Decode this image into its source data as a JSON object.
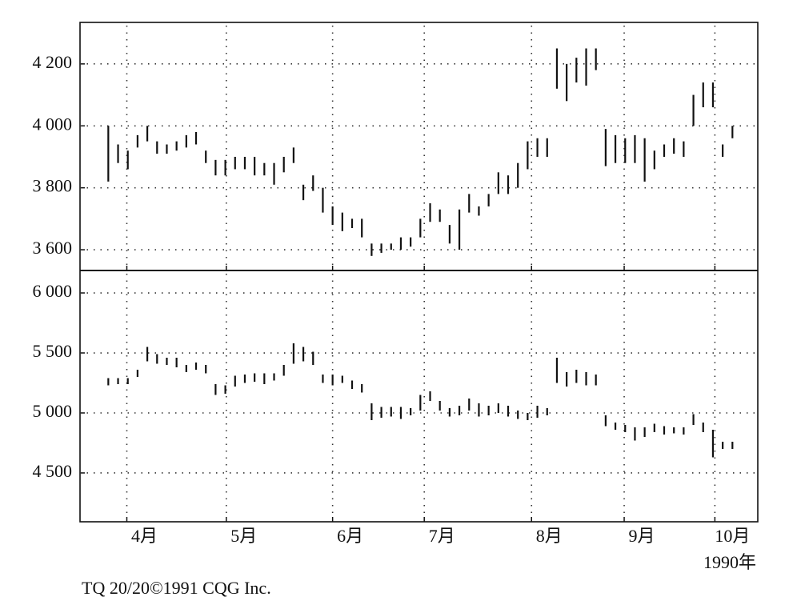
{
  "chart_data": [
    {
      "type": "range-bar",
      "x": [
        0,
        1,
        2,
        3,
        4,
        5,
        6,
        7,
        8,
        9,
        10,
        11,
        12,
        13,
        14,
        15,
        16,
        17,
        18,
        19,
        20,
        21,
        22,
        23,
        24,
        25,
        26,
        27,
        28,
        29,
        30,
        31,
        32,
        33,
        34,
        35,
        36,
        37,
        38,
        39,
        40,
        41,
        42,
        43,
        44,
        45,
        46,
        47,
        48,
        49,
        50,
        51,
        52,
        53,
        54,
        55,
        56,
        57,
        58,
        59,
        60,
        61,
        62,
        63,
        64
      ],
      "high": [
        4000,
        3940,
        3920,
        3970,
        4000,
        3950,
        3940,
        3950,
        3970,
        3980,
        3920,
        3890,
        3890,
        3900,
        3900,
        3900,
        3880,
        3880,
        3900,
        3930,
        3810,
        3840,
        3800,
        3740,
        3720,
        3700,
        3700,
        3620,
        3620,
        3620,
        3640,
        3640,
        3700,
        3750,
        3730,
        3680,
        3730,
        3780,
        3740,
        3780,
        3850,
        3840,
        3880,
        3950,
        3960,
        3960,
        4250,
        4200,
        4220,
        4250,
        4250,
        3990,
        3970,
        3960,
        3970,
        3960,
        3920,
        3940,
        3960,
        3950,
        4100,
        4140,
        4140,
        3940,
        4000
      ],
      "low": [
        3820,
        3880,
        3860,
        3930,
        3950,
        3910,
        3910,
        3920,
        3930,
        3940,
        3880,
        3840,
        3840,
        3860,
        3860,
        3840,
        3840,
        3810,
        3850,
        3880,
        3760,
        3790,
        3720,
        3680,
        3660,
        3670,
        3640,
        3580,
        3590,
        3600,
        3600,
        3610,
        3640,
        3690,
        3690,
        3620,
        3600,
        3720,
        3710,
        3740,
        3780,
        3780,
        3800,
        3860,
        3900,
        3900,
        4120,
        4080,
        4140,
        4130,
        4180,
        3870,
        3880,
        3880,
        3880,
        3820,
        3860,
        3900,
        3910,
        3900,
        4000,
        4060,
        4060,
        3900,
        3960
      ],
      "xlim": [
        -2.9,
        66.6
      ],
      "ylim": [
        3533,
        4334
      ],
      "yticks": [
        {
          "value": 3600,
          "label": "3 600"
        },
        {
          "value": 3800,
          "label": "3 800"
        },
        {
          "value": 4000,
          "label": "4 000"
        },
        {
          "value": 4200,
          "label": "4 200"
        }
      ],
      "xticks": [
        1.9,
        12.1,
        23,
        32.4,
        43.4,
        52.9,
        62.2
      ],
      "grid": true
    },
    {
      "type": "range-bar",
      "x": [
        0,
        1,
        2,
        3,
        4,
        5,
        6,
        7,
        8,
        9,
        10,
        11,
        12,
        13,
        14,
        15,
        16,
        17,
        18,
        19,
        20,
        21,
        22,
        23,
        24,
        25,
        26,
        27,
        28,
        29,
        30,
        31,
        32,
        33,
        34,
        35,
        36,
        37,
        38,
        39,
        40,
        41,
        42,
        43,
        44,
        45,
        46,
        47,
        48,
        49,
        50,
        51,
        52,
        53,
        54,
        55,
        56,
        57,
        58,
        59,
        60,
        61,
        62,
        63,
        64
      ],
      "high": [
        5290,
        5290,
        5290,
        5360,
        5550,
        5490,
        5460,
        5460,
        5400,
        5420,
        5400,
        5240,
        5230,
        5310,
        5320,
        5330,
        5330,
        5330,
        5400,
        5580,
        5550,
        5510,
        5320,
        5320,
        5310,
        5270,
        5240,
        5080,
        5050,
        5050,
        5050,
        5040,
        5150,
        5180,
        5100,
        5040,
        5060,
        5120,
        5080,
        5060,
        5080,
        5060,
        5020,
        5000,
        5060,
        5040,
        5460,
        5340,
        5360,
        5340,
        5320,
        4980,
        4920,
        4900,
        4880,
        4880,
        4910,
        4890,
        4880,
        4880,
        4990,
        4920,
        4860,
        4760,
        4760
      ],
      "low": [
        5230,
        5240,
        5240,
        5300,
        5430,
        5410,
        5400,
        5380,
        5340,
        5360,
        5330,
        5150,
        5160,
        5220,
        5250,
        5260,
        5240,
        5270,
        5310,
        5410,
        5430,
        5400,
        5250,
        5230,
        5250,
        5200,
        5170,
        4940,
        4960,
        4970,
        4950,
        4980,
        5020,
        5100,
        5020,
        4970,
        4980,
        5020,
        4970,
        4980,
        5000,
        4970,
        4950,
        4940,
        4960,
        4980,
        5250,
        5220,
        5250,
        5230,
        5230,
        4890,
        4860,
        4840,
        4770,
        4800,
        4840,
        4820,
        4830,
        4820,
        4900,
        4840,
        4630,
        4700,
        4700
      ],
      "xlim": [
        -2.9,
        66.6
      ],
      "ylim": [
        4093,
        6187
      ],
      "yticks": [
        {
          "value": 4500,
          "label": "4 500"
        },
        {
          "value": 5000,
          "label": "5 000"
        },
        {
          "value": 5500,
          "label": "5 500"
        },
        {
          "value": 6000,
          "label": "6 000"
        }
      ],
      "xticks": [
        {
          "value": 1.9,
          "label": "4月"
        },
        {
          "value": 12.1,
          "label": "5月"
        },
        {
          "value": 23,
          "label": "6月"
        },
        {
          "value": 32.4,
          "label": "7月"
        },
        {
          "value": 43.4,
          "label": "8月"
        },
        {
          "value": 52.9,
          "label": "9月"
        },
        {
          "value": 62.2,
          "label": "10月"
        }
      ],
      "xlabel": "1990年",
      "grid": true
    }
  ],
  "source": "TQ 20/20©1991 CQG Inc."
}
